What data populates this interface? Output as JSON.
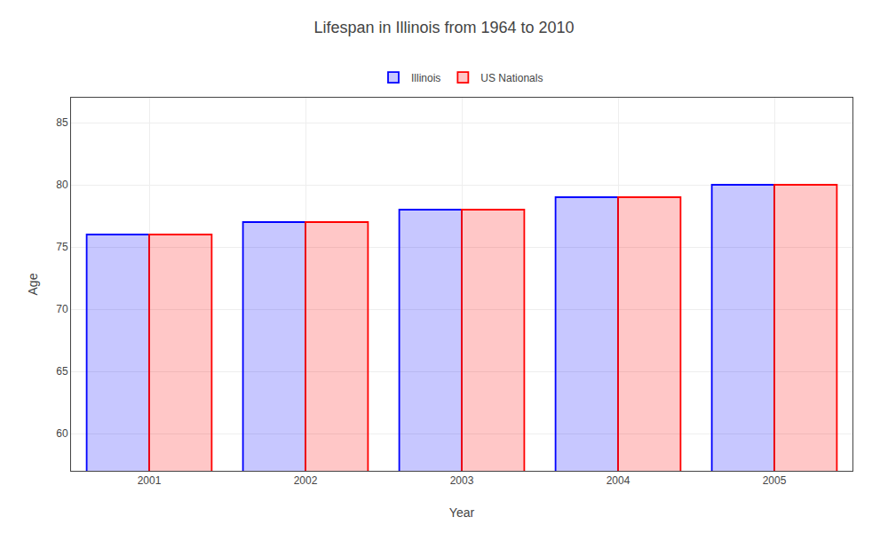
{
  "chart_data": {
    "type": "bar",
    "title": "Lifespan in Illinois from 1964 to 2010",
    "xlabel": "Year",
    "ylabel": "Age",
    "categories": [
      "2001",
      "2002",
      "2003",
      "2004",
      "2005"
    ],
    "series": [
      {
        "name": "Illinois",
        "color": "#0000ff",
        "values": [
          76,
          77,
          78,
          79,
          80
        ]
      },
      {
        "name": "US Nationals",
        "color": "#ff0000",
        "values": [
          76,
          77,
          78,
          79,
          80
        ]
      }
    ],
    "ylim": [
      57,
      87
    ],
    "yticks": [
      60,
      65,
      70,
      75,
      80,
      85
    ],
    "grid": true,
    "legend": "top"
  }
}
